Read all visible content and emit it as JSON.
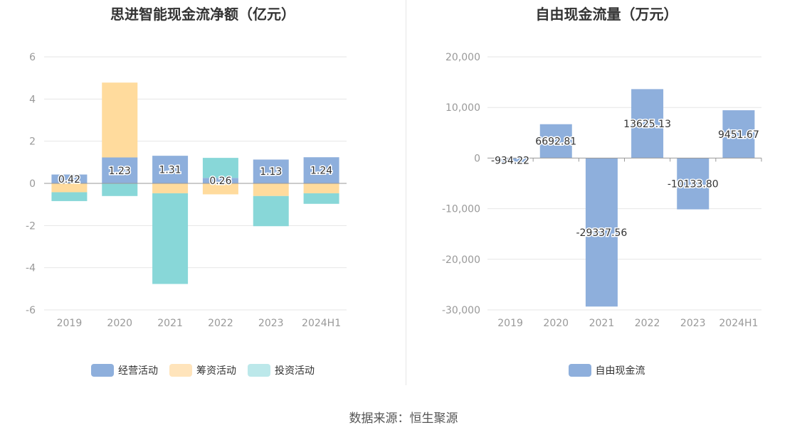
{
  "source_label": "数据来源：恒生聚源",
  "colors": {
    "operating": "#8eafdc",
    "financing": "#ffdb9d",
    "investing": "#88d7d8",
    "free_cash": "#8eafdc",
    "grid": "#e6e6e6",
    "axis": "#999999"
  },
  "chart_data": [
    {
      "type": "bar",
      "stacked": true,
      "title": "思进智能现金流净额（亿元）",
      "categories": [
        "2019",
        "2020",
        "2021",
        "2022",
        "2023",
        "2024H1"
      ],
      "ylim": [
        -6,
        6
      ],
      "yticks": [
        -6,
        -4,
        -2,
        0,
        2,
        4,
        6
      ],
      "grid": true,
      "legend_position": "bottom",
      "series": [
        {
          "name": "经营活动",
          "values": [
            0.42,
            1.23,
            1.31,
            0.26,
            1.13,
            1.24
          ],
          "labels": [
            "0.42",
            "1.23",
            "1.31",
            "0.26",
            "1.13",
            "1.24"
          ]
        },
        {
          "name": "筹资活动",
          "values": [
            -0.42,
            3.55,
            -0.47,
            -0.52,
            -0.6,
            -0.47
          ]
        },
        {
          "name": "投资活动",
          "values": [
            -0.42,
            -0.6,
            -4.3,
            0.95,
            -1.43,
            -0.5
          ]
        }
      ]
    },
    {
      "type": "bar",
      "title": "自由现金流量（万元）",
      "categories": [
        "2019",
        "2020",
        "2021",
        "2022",
        "2023",
        "2024H1"
      ],
      "ylim": [
        -30000,
        20000
      ],
      "yticks": [
        -30000,
        -20000,
        -10000,
        0,
        10000,
        20000
      ],
      "ytick_labels": [
        "-30,000",
        "-20,000",
        "-10,000",
        "0",
        "10,000",
        "20,000"
      ],
      "grid": true,
      "legend_position": "bottom",
      "series": [
        {
          "name": "自由现金流",
          "values": [
            -934.22,
            6692.81,
            -29337.56,
            13625.13,
            -10133.8,
            9451.67
          ],
          "labels": [
            "-934.22",
            "6692.81",
            "-29337.56",
            "13625.13",
            "-10133.80",
            "9451.67"
          ]
        }
      ]
    }
  ]
}
